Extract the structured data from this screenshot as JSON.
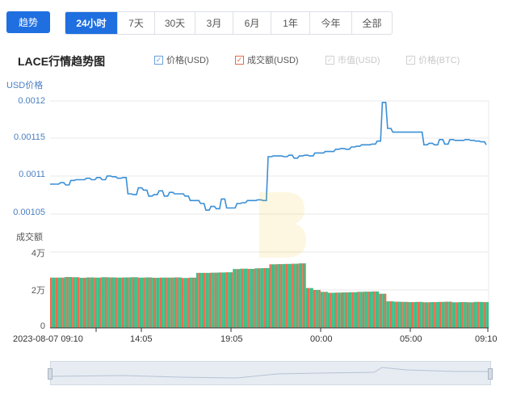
{
  "toolbar": {
    "trend_label": "趋势",
    "ranges": [
      "24小时",
      "7天",
      "30天",
      "3月",
      "6月",
      "1年",
      "今年",
      "全部"
    ],
    "active_range": "24小时"
  },
  "chart_title": "LACE行情趋势图",
  "legend": [
    {
      "label": "价格(USD)",
      "checked": true,
      "color": "#3a8fd6"
    },
    {
      "label": "成交额(USD)",
      "checked": true,
      "color": "#e8684a"
    },
    {
      "label": "市值(USD)",
      "checked": false,
      "color": "#c8c8c8"
    },
    {
      "label": "价格(BTC)",
      "checked": false,
      "color": "#c8c8c8"
    }
  ],
  "colors": {
    "price_line": "#3a8fd6",
    "vol_green": "#3cbf86",
    "vol_red": "#ef6a4f",
    "accent": "#1f6fe0",
    "axis_label": "#4a7fc1"
  },
  "chart_data": {
    "type": "line+bar",
    "price_axis_title": "USD价格",
    "price_ticks": [
      "0.0012",
      "0.00115",
      "0.0011",
      "0.00105"
    ],
    "price_ylim": [
      0.001025,
      0.0012
    ],
    "volume_axis_title": "成交额",
    "volume_ticks": [
      "4万",
      "2万",
      "0"
    ],
    "volume_ylim": [
      0,
      40000
    ],
    "x_ticks": [
      "2023-08-07 09:10",
      "14:05",
      "19:05",
      "00:00",
      "05:00",
      "09:10"
    ],
    "price_series": [
      0.001088,
      0.001088,
      0.00109,
      0.001087,
      0.001093,
      0.001094,
      0.001094,
      0.001096,
      0.001094,
      0.001097,
      0.001094,
      0.001099,
      0.001098,
      0.001096,
      0.001097,
      0.001075,
      0.001074,
      0.001083,
      0.00108,
      0.001072,
      0.001074,
      0.001079,
      0.001072,
      0.001077,
      0.001075,
      0.001075,
      0.001072,
      0.001066,
      0.001066,
      0.001062,
      0.001053,
      0.001058,
      0.001055,
      0.001068,
      0.001056,
      0.001056,
      0.001062,
      0.001063,
      0.001066,
      0.001066,
      0.001067,
      0.001066,
      0.001125,
      0.001126,
      0.001126,
      0.001125,
      0.001127,
      0.001123,
      0.001126,
      0.001127,
      0.001126,
      0.00113,
      0.00113,
      0.001132,
      0.001132,
      0.001135,
      0.001136,
      0.001135,
      0.001138,
      0.001139,
      0.001141,
      0.001141,
      0.001142,
      0.001146,
      0.001198,
      0.001163,
      0.001158,
      0.001158,
      0.001158,
      0.001158,
      0.001158,
      0.001158,
      0.001141,
      0.001143,
      0.001141,
      0.001148,
      0.001142,
      0.001148,
      0.001147,
      0.001147,
      0.001148,
      0.001147,
      0.001146,
      0.001145,
      0.001141
    ],
    "volume_series": [
      26500,
      26500,
      26800,
      26700,
      26400,
      26600,
      26500,
      26700,
      26600,
      26500,
      26600,
      26700,
      26500,
      26600,
      26400,
      26500,
      26500,
      26600,
      26300,
      26500,
      29000,
      29000,
      29100,
      29200,
      29300,
      31000,
      31200,
      31100,
      31400,
      31500,
      33500,
      33600,
      33700,
      33800,
      34000,
      21000,
      20000,
      19000,
      18500,
      18600,
      18700,
      18800,
      19000,
      19100,
      19200,
      18000,
      14000,
      13800,
      13700,
      13600,
      13700,
      13500,
      13600,
      13700,
      13800,
      13500,
      13600,
      13500,
      13700,
      13600
    ]
  }
}
